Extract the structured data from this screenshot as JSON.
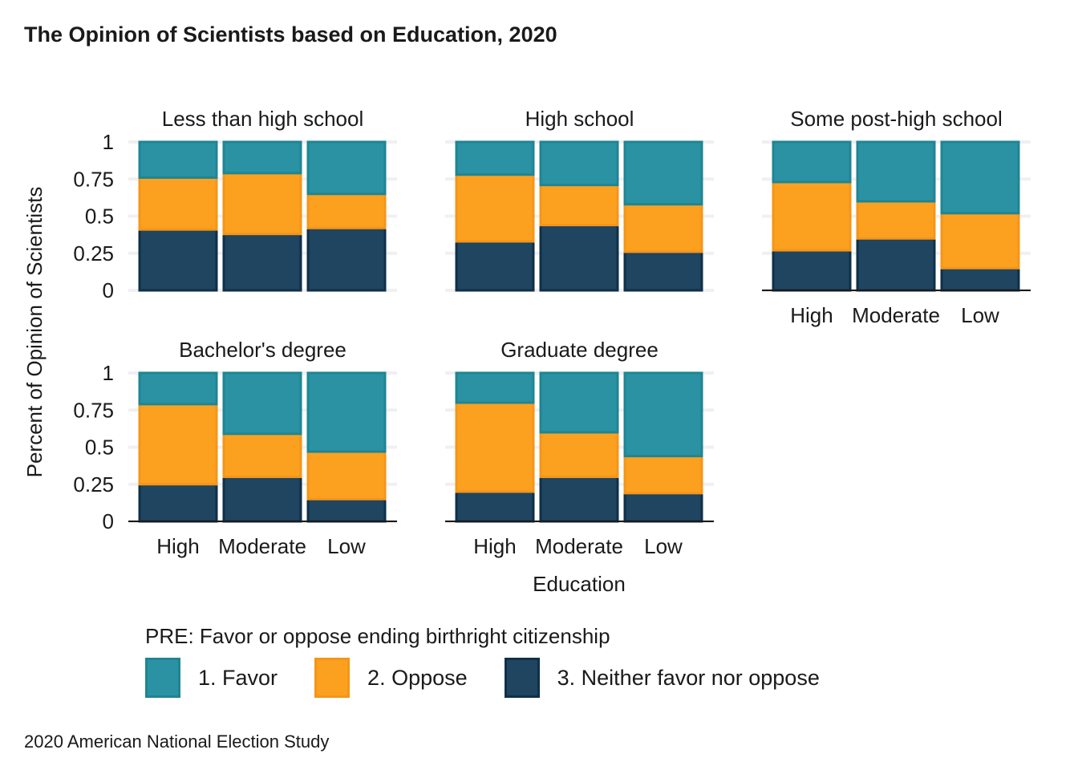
{
  "title": "The Opinion of Scientists based on Education, 2020",
  "caption": "2020 American National Election Study",
  "legend": {
    "title": "PRE: Favor or oppose ending birthright citizenship",
    "items": [
      {
        "label": "1. Favor",
        "color": "#2a92a3",
        "border": "#1f8593"
      },
      {
        "label": "2. Oppose",
        "color": "#fba11f",
        "border": "#f5951a"
      },
      {
        "label": "3. Neither favor nor oppose",
        "color": "#1f4560",
        "border": "#0f3049"
      }
    ]
  },
  "chart_data": {
    "type": "bar",
    "stacked": true,
    "xlabel": "Education",
    "ylabel": "Percent of Opinion of Scientists",
    "ylim": [
      0,
      1
    ],
    "yticks": [
      "0",
      "0.25",
      "0.5",
      "0.75",
      "1"
    ],
    "categories": [
      "High",
      "Moderate",
      "Low"
    ],
    "series_names": [
      "1. Favor",
      "2. Oppose",
      "3. Neither favor nor oppose"
    ],
    "panels": [
      {
        "title": "Less than high school",
        "favor": [
          0.24,
          0.21,
          0.35
        ],
        "oppose": [
          0.35,
          0.41,
          0.23
        ],
        "neither": [
          0.41,
          0.38,
          0.42
        ]
      },
      {
        "title": "High school",
        "favor": [
          0.22,
          0.29,
          0.42
        ],
        "oppose": [
          0.45,
          0.27,
          0.32
        ],
        "neither": [
          0.33,
          0.44,
          0.26
        ]
      },
      {
        "title": "Some post-high school",
        "favor": [
          0.27,
          0.4,
          0.48
        ],
        "oppose": [
          0.46,
          0.25,
          0.37
        ],
        "neither": [
          0.27,
          0.35,
          0.15
        ]
      },
      {
        "title": "Bachelor's degree",
        "favor": [
          0.21,
          0.41,
          0.53
        ],
        "oppose": [
          0.54,
          0.29,
          0.32
        ],
        "neither": [
          0.25,
          0.3,
          0.15
        ]
      },
      {
        "title": "Graduate degree",
        "favor": [
          0.2,
          0.4,
          0.56
        ],
        "oppose": [
          0.6,
          0.3,
          0.25
        ],
        "neither": [
          0.2,
          0.3,
          0.19
        ]
      }
    ]
  }
}
